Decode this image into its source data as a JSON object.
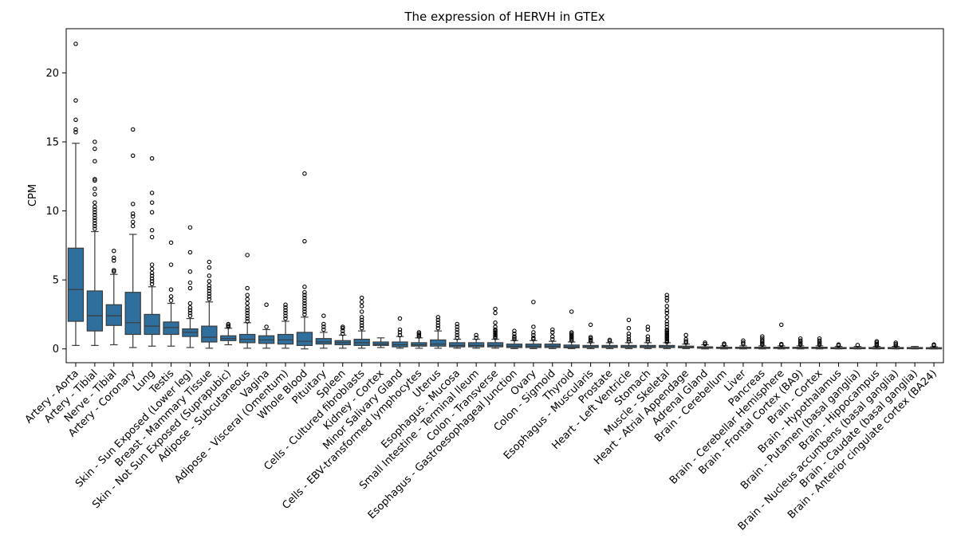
{
  "chart_data": {
    "type": "boxplot",
    "title": "The expression of HERVH in GTEx",
    "xlabel": "",
    "ylabel": "CPM",
    "ylim": [
      -1.0,
      23.2
    ],
    "yticks": [
      0,
      5,
      10,
      15,
      20
    ],
    "box_color": "#2e6f9e",
    "grid": false,
    "categories": [
      "Artery - Aorta",
      "Artery - Tibial",
      "Nerve - Tibial",
      "Artery - Coronary",
      "Lung",
      "Testis",
      "Skin - Sun Exposed (Lower leg)",
      "Breast - Mammary Tissue",
      "Skin - Not Sun Exposed (Suprapubic)",
      "Adipose - Subcutaneous",
      "Vagina",
      "Adipose - Visceral (Omentum)",
      "Whole Blood",
      "Pituitary",
      "Spleen",
      "Cells - Cultured fibroblasts",
      "Kidney - Cortex",
      "Minor Salivary Gland",
      "Cells - EBV-transformed lymphocytes",
      "Uterus",
      "Esophagus - Mucosa",
      "Small Intestine - Terminal Ileum",
      "Colon - Transverse",
      "Esophagus - Gastroesophageal Junction",
      "Ovary",
      "Colon - Sigmoid",
      "Thyroid",
      "Esophagus - Muscularis",
      "Prostate",
      "Heart - Left Ventricle",
      "Stomach",
      "Muscle - Skeletal",
      "Heart - Atrial Appendage",
      "Adrenal Gland",
      "Brain - Cerebellum",
      "Liver",
      "Pancreas",
      "Brain - Cerebellar Hemisphere",
      "Brain - Frontal Cortex (BA9)",
      "Brain - Cortex",
      "Brain - Hypothalamus",
      "Brain - Putamen (basal ganglia)",
      "Brain - Hippocampus",
      "Brain - Nucleus accumbens (basal ganglia)",
      "Brain - Caudate (basal ganglia)",
      "Brain - Anterior cingulate cortex (BA24)"
    ],
    "boxes": [
      {
        "q1": 2.0,
        "median": 4.3,
        "q3": 7.3,
        "whisker_low": 0.25,
        "whisker_high": 14.9,
        "outliers": [
          15.7,
          15.9,
          16.6,
          18.0,
          22.1
        ]
      },
      {
        "q1": 1.3,
        "median": 2.4,
        "q3": 4.2,
        "whisker_low": 0.25,
        "whisker_high": 8.5,
        "outliers": [
          8.7,
          8.9,
          9.1,
          9.3,
          9.5,
          9.7,
          9.9,
          10.1,
          10.3,
          10.6,
          11.2,
          11.6,
          12.2,
          12.3,
          13.6,
          14.5,
          15.0
        ]
      },
      {
        "q1": 1.7,
        "median": 2.4,
        "q3": 3.2,
        "whisker_low": 0.3,
        "whisker_high": 5.4,
        "outliers": [
          5.6,
          5.7,
          6.4,
          6.6,
          7.1
        ]
      },
      {
        "q1": 1.05,
        "median": 1.9,
        "q3": 4.1,
        "whisker_low": 0.1,
        "whisker_high": 8.3,
        "outliers": [
          8.9,
          9.2,
          9.6,
          9.8,
          10.5,
          14.0,
          15.9
        ]
      },
      {
        "q1": 1.05,
        "median": 1.65,
        "q3": 2.5,
        "whisker_low": 0.2,
        "whisker_high": 4.5,
        "outliers": [
          4.7,
          4.9,
          5.1,
          5.3,
          5.5,
          5.8,
          6.1,
          8.1,
          8.6,
          9.9,
          10.6,
          11.3,
          13.8
        ]
      },
      {
        "q1": 1.05,
        "median": 1.55,
        "q3": 1.95,
        "whisker_low": 0.2,
        "whisker_high": 3.3,
        "outliers": [
          3.5,
          3.8,
          4.3,
          6.1,
          7.7
        ]
      },
      {
        "q1": 0.9,
        "median": 1.2,
        "q3": 1.45,
        "whisker_low": 0.1,
        "whisker_high": 2.2,
        "outliers": [
          2.4,
          2.6,
          2.8,
          3.0,
          3.3,
          4.4,
          4.8,
          5.6,
          7.0,
          8.8
        ]
      },
      {
        "q1": 0.5,
        "median": 0.85,
        "q3": 1.65,
        "whisker_low": 0.05,
        "whisker_high": 3.4,
        "outliers": [
          3.6,
          3.8,
          4.0,
          4.2,
          4.4,
          4.6,
          4.9,
          5.3,
          5.9,
          6.3
        ]
      },
      {
        "q1": 0.6,
        "median": 0.75,
        "q3": 0.95,
        "whisker_low": 0.3,
        "whisker_high": 1.5,
        "outliers": [
          1.6,
          1.7,
          1.8
        ]
      },
      {
        "q1": 0.45,
        "median": 0.7,
        "q3": 1.05,
        "whisker_low": 0.05,
        "whisker_high": 1.9,
        "outliers": [
          2.0,
          2.2,
          2.4,
          2.6,
          2.8,
          3.0,
          3.3,
          3.6,
          3.9,
          4.4,
          6.8
        ]
      },
      {
        "q1": 0.4,
        "median": 0.65,
        "q3": 0.95,
        "whisker_low": 0.05,
        "whisker_high": 1.4,
        "outliers": [
          1.6,
          3.2
        ]
      },
      {
        "q1": 0.35,
        "median": 0.65,
        "q3": 1.05,
        "whisker_low": 0.05,
        "whisker_high": 2.0,
        "outliers": [
          2.2,
          2.4,
          2.6,
          2.8,
          3.0,
          3.2
        ]
      },
      {
        "q1": 0.25,
        "median": 0.55,
        "q3": 1.2,
        "whisker_low": 0.0,
        "whisker_high": 2.3,
        "outliers": [
          2.5,
          2.7,
          2.9,
          3.1,
          3.3,
          3.5,
          3.7,
          3.9,
          4.1,
          4.5,
          7.8,
          12.7
        ]
      },
      {
        "q1": 0.35,
        "median": 0.5,
        "q3": 0.75,
        "whisker_low": 0.05,
        "whisker_high": 1.2,
        "outliers": [
          1.4,
          1.6,
          1.8,
          2.4
        ]
      },
      {
        "q1": 0.3,
        "median": 0.45,
        "q3": 0.6,
        "whisker_low": 0.05,
        "whisker_high": 1.0,
        "outliers": [
          1.1,
          1.3,
          1.5,
          1.6
        ]
      },
      {
        "q1": 0.25,
        "median": 0.45,
        "q3": 0.7,
        "whisker_low": 0.05,
        "whisker_high": 1.3,
        "outliers": [
          1.5,
          1.7,
          1.9,
          2.1,
          2.3,
          2.7,
          3.1,
          3.4,
          3.7
        ]
      },
      {
        "q1": 0.25,
        "median": 0.35,
        "q3": 0.5,
        "whisker_low": 0.1,
        "whisker_high": 0.8,
        "outliers": []
      },
      {
        "q1": 0.15,
        "median": 0.3,
        "q3": 0.5,
        "whisker_low": 0.05,
        "whisker_high": 0.9,
        "outliers": [
          1.0,
          1.2,
          1.4,
          2.2
        ]
      },
      {
        "q1": 0.2,
        "median": 0.3,
        "q3": 0.45,
        "whisker_low": 0.05,
        "whisker_high": 0.8,
        "outliers": [
          0.9,
          1.0,
          1.1,
          1.2
        ]
      },
      {
        "q1": 0.2,
        "median": 0.35,
        "q3": 0.65,
        "whisker_low": 0.05,
        "whisker_high": 1.3,
        "outliers": [
          1.5,
          1.7,
          1.9,
          2.1,
          2.3
        ]
      },
      {
        "q1": 0.15,
        "median": 0.25,
        "q3": 0.45,
        "whisker_low": 0.05,
        "whisker_high": 0.7,
        "outliers": [
          0.8,
          1.0,
          1.2,
          1.4,
          1.6,
          1.8
        ]
      },
      {
        "q1": 0.15,
        "median": 0.25,
        "q3": 0.45,
        "whisker_low": 0.05,
        "whisker_high": 0.7,
        "outliers": [
          0.8,
          1.0
        ]
      },
      {
        "q1": 0.15,
        "median": 0.25,
        "q3": 0.45,
        "whisker_low": 0.05,
        "whisker_high": 0.7,
        "outliers": [
          0.8,
          0.9,
          1.0,
          1.1,
          1.2,
          1.3,
          1.4,
          1.6,
          1.9,
          2.6,
          2.9
        ]
      },
      {
        "q1": 0.1,
        "median": 0.2,
        "q3": 0.35,
        "whisker_low": 0.02,
        "whisker_high": 0.6,
        "outliers": [
          0.7,
          0.8,
          0.9,
          1.1,
          1.3
        ]
      },
      {
        "q1": 0.1,
        "median": 0.2,
        "q3": 0.35,
        "whisker_low": 0.02,
        "whisker_high": 0.6,
        "outliers": [
          0.7,
          0.8,
          1.0,
          1.2,
          1.6,
          3.4
        ]
      },
      {
        "q1": 0.1,
        "median": 0.2,
        "q3": 0.35,
        "whisker_low": 0.02,
        "whisker_high": 0.55,
        "outliers": [
          0.7,
          0.9,
          1.2,
          1.4
        ]
      },
      {
        "q1": 0.08,
        "median": 0.15,
        "q3": 0.28,
        "whisker_low": 0.02,
        "whisker_high": 0.5,
        "outliers": [
          0.6,
          0.7,
          0.8,
          0.9,
          1.0,
          1.1,
          1.2,
          2.7
        ]
      },
      {
        "q1": 0.1,
        "median": 0.15,
        "q3": 0.25,
        "whisker_low": 0.02,
        "whisker_high": 0.45,
        "outliers": [
          0.55,
          0.65,
          0.75,
          0.85,
          1.75
        ]
      },
      {
        "q1": 0.1,
        "median": 0.15,
        "q3": 0.25,
        "whisker_low": 0.02,
        "whisker_high": 0.45,
        "outliers": [
          0.55,
          0.65
        ]
      },
      {
        "q1": 0.1,
        "median": 0.15,
        "q3": 0.25,
        "whisker_low": 0.02,
        "whisker_high": 0.45,
        "outliers": [
          0.55,
          0.7,
          0.9,
          1.1,
          1.5,
          2.1
        ]
      },
      {
        "q1": 0.1,
        "median": 0.15,
        "q3": 0.25,
        "whisker_low": 0.02,
        "whisker_high": 0.45,
        "outliers": [
          0.55,
          0.7,
          0.9,
          1.4,
          1.6
        ]
      },
      {
        "q1": 0.1,
        "median": 0.15,
        "q3": 0.25,
        "whisker_low": 0.02,
        "whisker_high": 0.45,
        "outliers": [
          0.5,
          0.6,
          0.7,
          0.8,
          0.9,
          1.0,
          1.1,
          1.2,
          1.3,
          1.4,
          1.6,
          1.8,
          2.0,
          2.3,
          2.6,
          2.8,
          3.1,
          3.5,
          3.7,
          3.9
        ]
      },
      {
        "q1": 0.08,
        "median": 0.12,
        "q3": 0.2,
        "whisker_low": 0.02,
        "whisker_high": 0.35,
        "outliers": [
          0.45,
          0.55,
          0.7,
          1.0
        ]
      },
      {
        "q1": 0.05,
        "median": 0.1,
        "q3": 0.15,
        "whisker_low": 0.0,
        "whisker_high": 0.3,
        "outliers": [
          0.35,
          0.45
        ]
      },
      {
        "q1": 0.05,
        "median": 0.08,
        "q3": 0.12,
        "whisker_low": 0.0,
        "whisker_high": 0.22,
        "outliers": [
          0.3,
          0.38
        ]
      },
      {
        "q1": 0.05,
        "median": 0.08,
        "q3": 0.12,
        "whisker_low": 0.0,
        "whisker_high": 0.22,
        "outliers": [
          0.35,
          0.45,
          0.6
        ]
      },
      {
        "q1": 0.05,
        "median": 0.08,
        "q3": 0.12,
        "whisker_low": 0.0,
        "whisker_high": 0.22,
        "outliers": [
          0.3,
          0.4,
          0.5,
          0.6,
          0.75,
          0.9
        ]
      },
      {
        "q1": 0.05,
        "median": 0.08,
        "q3": 0.12,
        "whisker_low": 0.0,
        "whisker_high": 0.22,
        "outliers": [
          0.28,
          0.35,
          1.75
        ]
      },
      {
        "q1": 0.05,
        "median": 0.08,
        "q3": 0.12,
        "whisker_low": 0.0,
        "whisker_high": 0.22,
        "outliers": [
          0.3,
          0.4,
          0.5,
          0.6,
          0.75
        ]
      },
      {
        "q1": 0.05,
        "median": 0.08,
        "q3": 0.12,
        "whisker_low": 0.0,
        "whisker_high": 0.22,
        "outliers": [
          0.3,
          0.4,
          0.5,
          0.6,
          0.75
        ]
      },
      {
        "q1": 0.04,
        "median": 0.07,
        "q3": 0.1,
        "whisker_low": 0.0,
        "whisker_high": 0.18,
        "outliers": [
          0.25,
          0.32
        ]
      },
      {
        "q1": 0.04,
        "median": 0.07,
        "q3": 0.1,
        "whisker_low": 0.0,
        "whisker_high": 0.18,
        "outliers": [
          0.28
        ]
      },
      {
        "q1": 0.04,
        "median": 0.07,
        "q3": 0.1,
        "whisker_low": 0.0,
        "whisker_high": 0.18,
        "outliers": [
          0.25,
          0.35,
          0.45,
          0.55
        ]
      },
      {
        "q1": 0.04,
        "median": 0.07,
        "q3": 0.1,
        "whisker_low": 0.0,
        "whisker_high": 0.18,
        "outliers": [
          0.25,
          0.35,
          0.45
        ]
      },
      {
        "q1": 0.04,
        "median": 0.07,
        "q3": 0.1,
        "whisker_low": 0.0,
        "whisker_high": 0.18,
        "outliers": []
      },
      {
        "q1": 0.04,
        "median": 0.06,
        "q3": 0.09,
        "whisker_low": 0.0,
        "whisker_high": 0.15,
        "outliers": [
          0.25,
          0.32
        ]
      }
    ]
  }
}
